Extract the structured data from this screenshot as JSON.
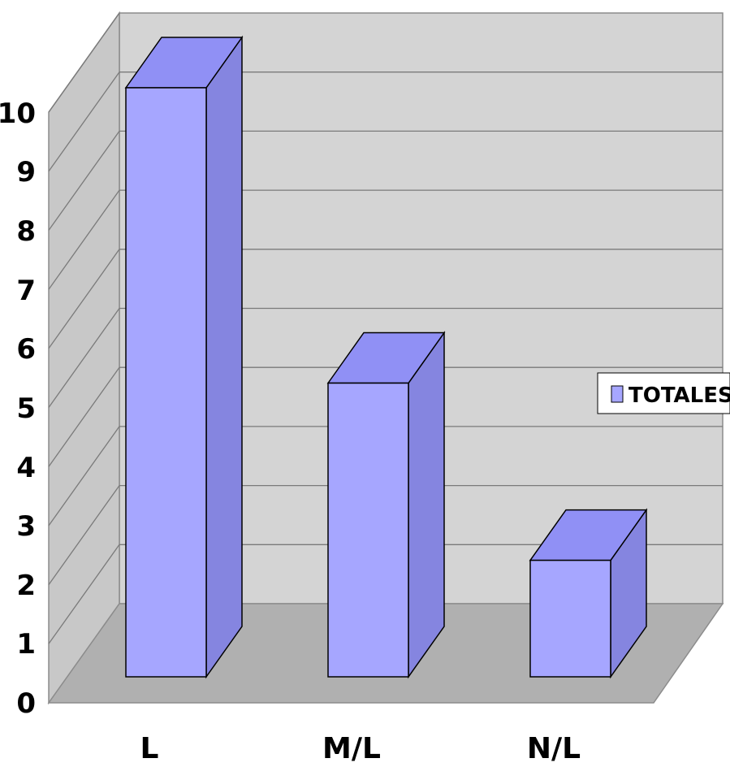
{
  "chart_data": {
    "type": "bar",
    "categories": [
      "L",
      "M/L",
      "N/L"
    ],
    "series": [
      {
        "name": "TOTALES",
        "values": [
          10,
          5,
          2
        ]
      }
    ],
    "y_ticks": [
      "0",
      "1",
      "2",
      "3",
      "4",
      "5",
      "6",
      "7",
      "8",
      "9",
      "10"
    ],
    "ylim": [
      0,
      10
    ],
    "grid": true,
    "legend": "right",
    "colors": {
      "bar_front": "#a6a6ff",
      "bar_top": "#9090f5",
      "bar_side": "#8585e0",
      "back_wall": "#d4d4d4",
      "side_wall": "#c8c8c8",
      "floor": "#b0b0b0",
      "gridline": "#7a7a7a"
    }
  }
}
